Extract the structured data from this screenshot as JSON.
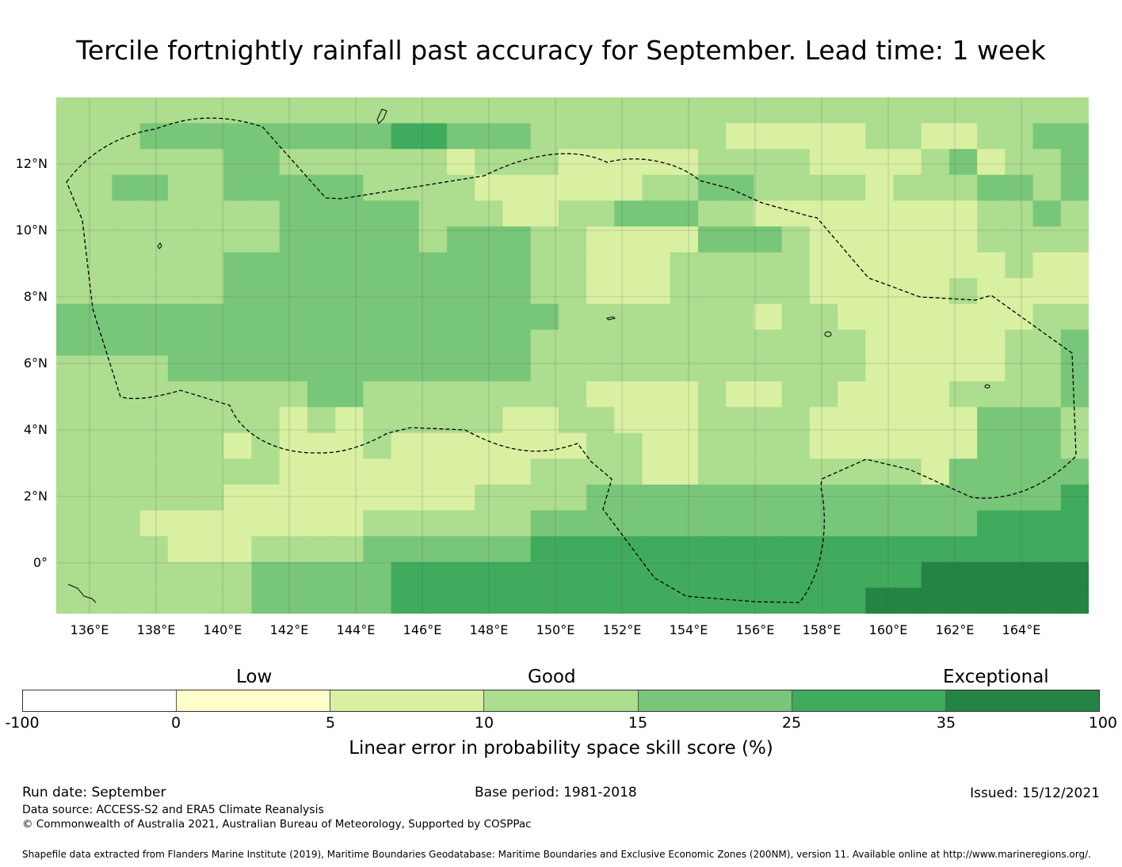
{
  "title": "Tercile fortnightly rainfall past accuracy for September. Lead time: 1 week",
  "map": {
    "region_name": "",
    "lat_labels": [
      "12°N",
      "10°N",
      "8°N",
      "6°N",
      "4°N",
      "2°N",
      "0°"
    ],
    "lon_labels": [
      "136°E",
      "138°E",
      "140°E",
      "142°E",
      "144°E",
      "146°E",
      "148°E",
      "150°E",
      "152°E",
      "154°E",
      "156°E",
      "158°E",
      "160°E",
      "162°E",
      "164°E"
    ],
    "boundary_style": "dashed",
    "grid_note": "Skill score grid cells by LEPS category (0–6 index into colorbar.colors)",
    "grid": [
      "3333333333333333333333333333333333333",
      "3334444444445544433333332222233223344",
      "3333334433333323332222233332222342334",
      "3344334444433332222223344333323334434",
      "3333333344444333223344433222222223343",
      "3333333344444344433222244432222223333",
      "3333334444444444433222333332222222322",
      "3333334444444444433222333332222232222",
      "4444444444444444443333333233222222233",
      "4444444444444444433333333333322222334",
      "3333444444444444433333333333322222334",
      "3333333334433333333222232233222233334",
      "3333333323233333223322233332222224443",
      "3333332322232222222332233332222224443",
      "3333333322222222233332233333333244444",
      "3333332222222223333444444444444444445",
      "3332222222233333344444444444444445555",
      "3333222333344444455555555555555555555",
      "3333333444445555555555555555555666666",
      "3333333444445555555555555555566666666"
    ]
  },
  "colorbar": {
    "categories": [
      "Low",
      "Good",
      "Exceptional"
    ],
    "ticks": [
      "-100",
      "0",
      "5",
      "10",
      "15",
      "25",
      "35",
      "100"
    ],
    "colors": [
      "#ffffff",
      "#ffffcc",
      "#d9f0a3",
      "#addd8e",
      "#78c679",
      "#41ab5d",
      "#238443"
    ],
    "label": "Linear error in probability space skill score (%)"
  },
  "footer": {
    "run_date": "Run date: September",
    "base_period": "Base period: 1981-2018",
    "issued": "Issued: 15/12/2021",
    "data_source": "Data source: ACCESS-S2 and ERA5 Climate Reanalysis",
    "copyright": "© Commonwealth of Australia 2021, Australian Bureau of Meteorology, Supported by COSPPac",
    "shapefile": "Shapefile data extracted from Flanders Marine Institute (2019), Maritime Boundaries Geodatabase: Maritime Boundaries and Exclusive Economic Zones (200NM), version 11. Available online at http://www.marineregions.org/."
  }
}
